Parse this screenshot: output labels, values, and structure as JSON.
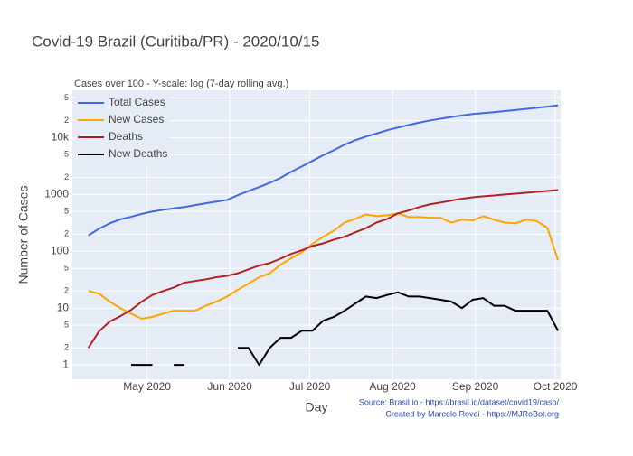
{
  "chart_data": {
    "type": "line",
    "title": "Covid-19 Brazil (Curitiba/PR) - 2020/10/15",
    "subtitle": "Cases over 100 - Y-scale: log (7-day rolling avg.)",
    "xlabel": "Day",
    "ylabel": "Number of Cases",
    "annotations": [
      "Source: Brasil.io - https://brasil.io/dataset/covid19/caso/",
      "Created by Marcelo Rovai - https://MJRoBot.org"
    ],
    "log_y": true,
    "grid": true,
    "legend_position": "top-left",
    "xlim": [
      "2020-04-03",
      "2020-10-03"
    ],
    "xticks": [
      {
        "value": "2020-05-01",
        "label": "May 2020"
      },
      {
        "value": "2020-06-01",
        "label": "Jun 2020"
      },
      {
        "value": "2020-07-01",
        "label": "Jul 2020"
      },
      {
        "value": "2020-08-01",
        "label": "Aug 2020"
      },
      {
        "value": "2020-09-01",
        "label": "Sep 2020"
      },
      {
        "value": "2020-10-01",
        "label": "Oct 2020"
      }
    ],
    "ylim": [
      0.56,
      68000
    ],
    "yticks": [
      1,
      2,
      5,
      10,
      {
        "value": 20,
        "label": "2"
      },
      {
        "value": 50,
        "label": "5"
      },
      100,
      {
        "value": 200,
        "label": "2"
      },
      {
        "value": 500,
        "label": "5"
      },
      1000,
      {
        "value": 2000,
        "label": "2"
      },
      {
        "value": 5000,
        "label": "5"
      },
      {
        "value": 10000,
        "label": "10k"
      },
      {
        "value": 20000,
        "label": "2"
      },
      {
        "value": 50000,
        "label": "5"
      }
    ],
    "x": [
      "2020-04-09",
      "2020-04-13",
      "2020-04-17",
      "2020-04-21",
      "2020-04-25",
      "2020-04-29",
      "2020-05-03",
      "2020-05-07",
      "2020-05-11",
      "2020-05-15",
      "2020-05-19",
      "2020-05-23",
      "2020-05-27",
      "2020-05-31",
      "2020-06-04",
      "2020-06-08",
      "2020-06-12",
      "2020-06-16",
      "2020-06-20",
      "2020-06-24",
      "2020-06-28",
      "2020-07-02",
      "2020-07-06",
      "2020-07-10",
      "2020-07-14",
      "2020-07-18",
      "2020-07-22",
      "2020-07-26",
      "2020-07-30",
      "2020-08-03",
      "2020-08-07",
      "2020-08-11",
      "2020-08-15",
      "2020-08-19",
      "2020-08-23",
      "2020-08-27",
      "2020-08-31",
      "2020-09-04",
      "2020-09-08",
      "2020-09-12",
      "2020-09-16",
      "2020-09-20",
      "2020-09-24",
      "2020-09-28",
      "2020-10-02"
    ],
    "series": [
      {
        "name": "Total Cases",
        "color": "#4169e1",
        "values": [
          190,
          250,
          310,
          365,
          405,
          455,
          500,
          535,
          570,
          600,
          650,
          700,
          750,
          800,
          970,
          1150,
          1350,
          1600,
          1950,
          2500,
          3100,
          3900,
          4900,
          6000,
          7500,
          9000,
          10400,
          11800,
          13500,
          15000,
          16700,
          18400,
          20000,
          21500,
          23000,
          24500,
          26000,
          27000,
          28000,
          29300,
          30500,
          32000,
          33500,
          35000,
          37000
        ]
      },
      {
        "name": "New Cases",
        "color": "#ffa500",
        "values": [
          20,
          18,
          13,
          10,
          8,
          6.5,
          7,
          8,
          9,
          9,
          9,
          11,
          13,
          16,
          21,
          27,
          35,
          41,
          58,
          75,
          96,
          135,
          180,
          230,
          320,
          370,
          445,
          415,
          430,
          465,
          400,
          400,
          390,
          390,
          320,
          360,
          350,
          415,
          360,
          320,
          310,
          360,
          340,
          260,
          70
        ]
      },
      {
        "name": "Deaths",
        "color": "#b22222",
        "values": [
          2,
          3.9,
          5.8,
          7.2,
          9.3,
          13,
          17,
          20,
          23,
          28,
          30,
          32,
          35,
          37,
          41,
          48,
          56,
          62,
          74,
          90,
          104,
          124,
          138,
          160,
          180,
          215,
          255,
          320,
          370,
          465,
          520,
          600,
          670,
          720,
          780,
          840,
          890,
          930,
          960,
          1000,
          1030,
          1070,
          1110,
          1150,
          1200
        ]
      },
      {
        "name": "New Deaths",
        "color": "#000000",
        "values": [
          1,
          null,
          1,
          null,
          1,
          1,
          1,
          null,
          1,
          1,
          null,
          1,
          null,
          null,
          2,
          2,
          1,
          2,
          3,
          3,
          4,
          4,
          6,
          7,
          9,
          12,
          16,
          15,
          17,
          19,
          16,
          16,
          15,
          14,
          13,
          10,
          14,
          15,
          11,
          11,
          9,
          9,
          9,
          9,
          4
        ]
      }
    ]
  }
}
